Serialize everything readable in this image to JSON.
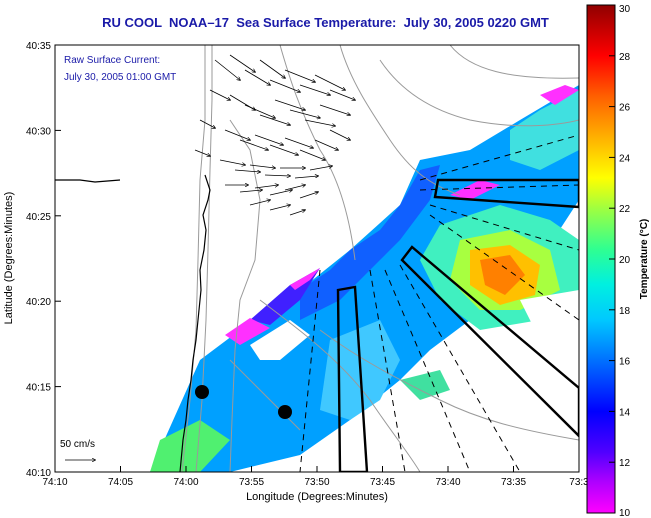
{
  "title": "RU COOL  NOAA–17  Sea Surface Temperature:  July 30, 2005 0220 GMT",
  "legend_text": {
    "line1": "Raw Surface Current:",
    "line2": "July 30, 2005 01:00 GMT"
  },
  "scale_label": "50 cm/s",
  "axes": {
    "xlabel": "Longitude (Degrees:Minutes)",
    "ylabel": "Latitude (Degrees:Minutes)",
    "x_ticks": [
      "74:10",
      "74:05",
      "74:00",
      "73:55",
      "73:50",
      "73:45",
      "73:40",
      "73:35",
      "73:3"
    ],
    "y_ticks": [
      "40:35",
      "40:30",
      "40:25",
      "40:20",
      "40:15",
      "40:10"
    ]
  },
  "colorbar": {
    "label": "Temperature (°C)",
    "min": 10,
    "max": 30,
    "ticks": [
      "30",
      "28",
      "26",
      "24",
      "22",
      "20",
      "18",
      "16",
      "14",
      "12",
      "10"
    ]
  },
  "colors": {
    "title": "#1a1aa8",
    "legend_text": "#1a1aa8",
    "land_contour": "#9a9a9a"
  }
}
